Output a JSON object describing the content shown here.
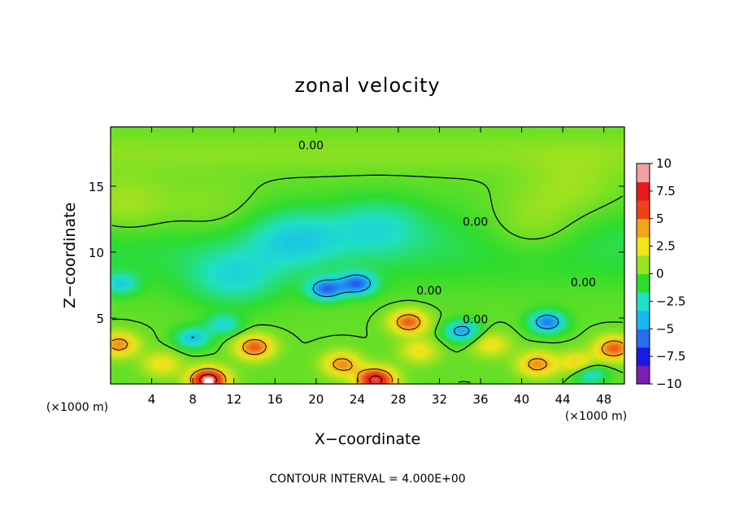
{
  "chart_data": {
    "type": "heatmap",
    "title": "zonal velocity",
    "xlabel": "X−coordinate",
    "ylabel": "Z−coordinate",
    "x_unit_left": "(×1000 m)",
    "x_unit_right": "(×1000 m)",
    "xlim": [
      0,
      50
    ],
    "ylim": [
      0,
      19.5
    ],
    "x_ticks": [
      4,
      8,
      12,
      16,
      20,
      24,
      28,
      32,
      36,
      40,
      44,
      48
    ],
    "x_tick_labels": [
      "4",
      "8",
      "12",
      "16",
      "20",
      "24",
      "28",
      "32",
      "36",
      "40",
      "44",
      "48"
    ],
    "y_ticks": [
      5,
      10,
      15
    ],
    "y_tick_labels": [
      "5",
      "10",
      "15"
    ],
    "colorbar": {
      "range": [
        -10,
        10
      ],
      "levels": [
        -10,
        -7.5,
        -5,
        -2.5,
        0,
        2.5,
        5,
        7.5,
        10
      ],
      "tick_labels": [
        "−10",
        "−7.5",
        "−5",
        "−2.5",
        "0",
        "2.5",
        "5",
        "7.5",
        "10"
      ],
      "colors": [
        "#7a1fb0",
        "#1a1ae6",
        "#2a6cf0",
        "#19b8f0",
        "#1fe0c8",
        "#2edc2e",
        "#9ce21f",
        "#f0e61a",
        "#f2a41a",
        "#f0401a",
        "#e61a1a",
        "#f0a0a0"
      ]
    },
    "contour_interval_text": "CONTOUR INTERVAL =  4.000E+00",
    "contour_labels": [
      {
        "text": "0.00",
        "x": 19.5,
        "y": 18.1
      },
      {
        "text": "0.00",
        "x": 35.5,
        "y": 12.3
      },
      {
        "text": "0.00",
        "x": 31.0,
        "y": 7.1
      },
      {
        "text": "0.00",
        "x": 46.0,
        "y": 7.7
      },
      {
        "text": "0.00",
        "x": 35.5,
        "y": 4.9
      }
    ],
    "features": [
      {
        "kind": "max",
        "x": 9.5,
        "y": 0.3,
        "value": 10
      },
      {
        "kind": "max",
        "x": 25.8,
        "y": 0.3,
        "value": 9
      },
      {
        "kind": "max",
        "x": 14.0,
        "y": 2.8,
        "value": 6
      },
      {
        "kind": "max",
        "x": 29.0,
        "y": 4.7,
        "value": 6
      },
      {
        "kind": "max",
        "x": 49.0,
        "y": 2.7,
        "value": 6
      },
      {
        "kind": "max",
        "x": 0.8,
        "y": 3.0,
        "value": 5
      },
      {
        "kind": "max",
        "x": 41.5,
        "y": 1.5,
        "value": 5
      },
      {
        "kind": "max",
        "x": 45.5,
        "y": 1.5,
        "value": 4
      },
      {
        "kind": "max",
        "x": 22.5,
        "y": 1.5,
        "value": 5
      },
      {
        "kind": "min",
        "x": 21.0,
        "y": 7.2,
        "value": -6
      },
      {
        "kind": "min",
        "x": 24.0,
        "y": 7.6,
        "value": -6
      },
      {
        "kind": "min",
        "x": 42.5,
        "y": 4.7,
        "value": -6
      },
      {
        "kind": "min",
        "x": 34.2,
        "y": 4.0,
        "value": -5
      },
      {
        "kind": "min",
        "x": 8.0,
        "y": 3.5,
        "value": -4
      },
      {
        "kind": "min",
        "x": 11.0,
        "y": 4.5,
        "value": -3
      },
      {
        "kind": "min",
        "x": 46.5,
        "y": 0.8,
        "value": -4
      },
      {
        "kind": "min",
        "x": 18.0,
        "y": 11.0,
        "value": -2.5
      },
      {
        "kind": "min",
        "x": 26.0,
        "y": 12.0,
        "value": -2.0
      },
      {
        "kind": "min",
        "x": 12.0,
        "y": 8.0,
        "value": -2.5
      },
      {
        "kind": "min",
        "x": 1.0,
        "y": 7.6,
        "value": -3
      },
      {
        "kind": "max",
        "x": 10.0,
        "y": 13.0,
        "value": 1.0
      },
      {
        "kind": "max",
        "x": 1.5,
        "y": 13.3,
        "value": 1.5
      },
      {
        "kind": "max",
        "x": 41.0,
        "y": 12.0,
        "value": 1.5
      },
      {
        "kind": "max",
        "x": 45.0,
        "y": 15.0,
        "value": 1.0
      },
      {
        "kind": "max",
        "x": 30.0,
        "y": 2.5,
        "value": 3.0
      },
      {
        "kind": "max",
        "x": 37.0,
        "y": 3.0,
        "value": 3.0
      },
      {
        "kind": "max",
        "x": 5.0,
        "y": 1.5,
        "value": 3.0
      }
    ]
  }
}
